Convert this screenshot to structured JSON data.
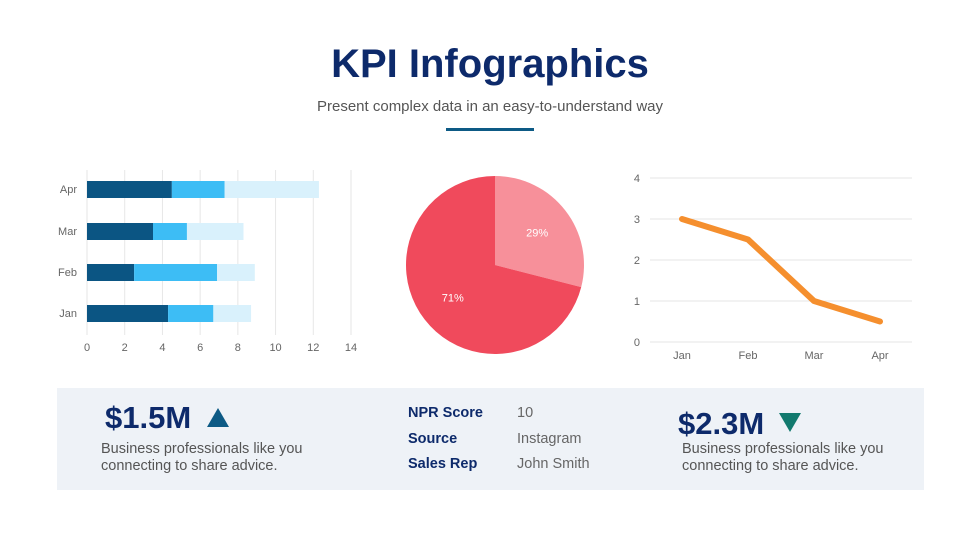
{
  "header": {
    "title": "KPI Infographics",
    "subtitle": "Present complex data in an easy-to-understand way"
  },
  "chart_data": [
    {
      "type": "bar",
      "orientation": "horizontal",
      "stacked": true,
      "categories": [
        "Jan",
        "Feb",
        "Mar",
        "Apr"
      ],
      "series": [
        {
          "values": [
            4.3,
            2.5,
            3.5,
            4.5
          ],
          "color": "#0b5583"
        },
        {
          "values": [
            2.4,
            4.4,
            1.8,
            2.8
          ],
          "color": "#3dbdf5"
        },
        {
          "values": [
            2,
            2,
            3,
            5
          ],
          "color": "#d9f1fc"
        }
      ],
      "xlim": [
        0,
        14
      ],
      "xticks": [
        0,
        2,
        4,
        6,
        8,
        10,
        12,
        14
      ],
      "grid": true
    },
    {
      "type": "pie",
      "values": [
        29,
        71
      ],
      "labels": [
        "29%",
        "71%"
      ],
      "colors": [
        "#f7909a",
        "#f04a5c"
      ]
    },
    {
      "type": "line",
      "categories": [
        "Jan",
        "Feb",
        "Mar",
        "Apr"
      ],
      "values": [
        3,
        2.5,
        1,
        0.5
      ],
      "ylim": [
        0,
        4
      ],
      "yticks": [
        0,
        1,
        2,
        3,
        4
      ],
      "color": "#f58f2e",
      "grid": true
    }
  ],
  "kpi": {
    "left": {
      "value": "$1.5M",
      "trend": "up",
      "desc1": "Business professionals like you",
      "desc2": "connecting to share advice.",
      "color": "#0d5a85"
    },
    "middle": [
      {
        "label": "NPR Score",
        "value": "10"
      },
      {
        "label": "Source",
        "value": "Instagram"
      },
      {
        "label": "Sales Rep",
        "value": "John Smith"
      }
    ],
    "right": {
      "value": "$2.3M",
      "trend": "down",
      "desc1": "Business professionals like you",
      "desc2": "connecting to share advice.",
      "color": "#127a6e"
    }
  }
}
